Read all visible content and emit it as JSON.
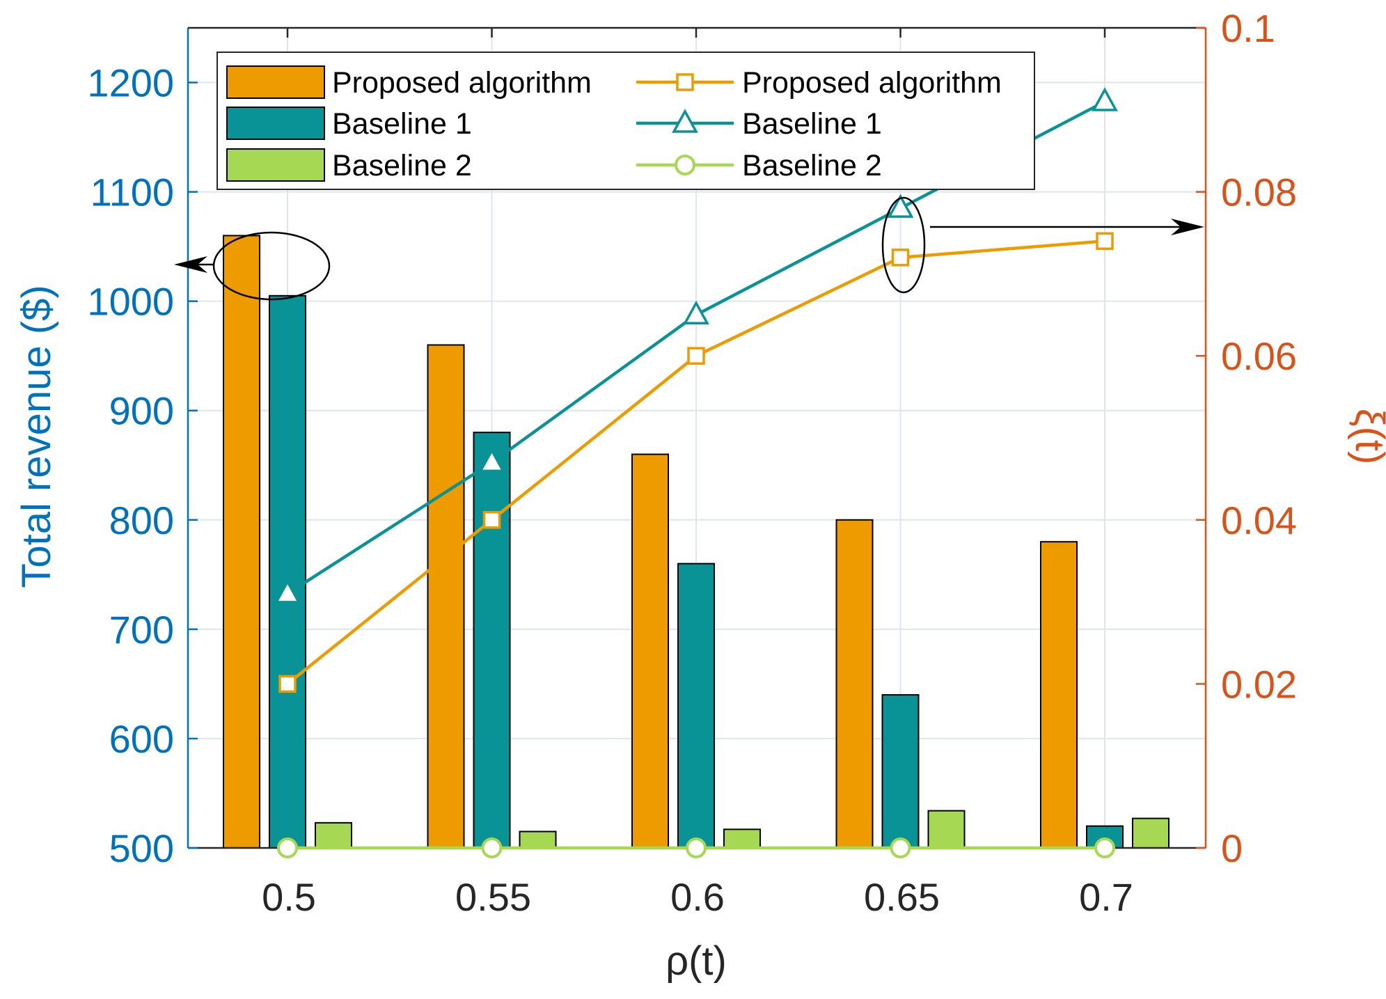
{
  "colors": {
    "proposed": "#ee9b00",
    "baseline1": "#0a9396",
    "baseline2": "#a6d854",
    "left_axis": "#0072bd",
    "right_axis": "#d95319",
    "grid": "#dfe5ea",
    "annotation": "#000000"
  },
  "chart_data": {
    "type": "bar",
    "secondary_type": "line",
    "title": "",
    "xlabel": "ρ(t)",
    "ylabel_left": "Total revenue ($)",
    "ylabel_right": "ξ(t)",
    "categories": [
      "0.5",
      "0.55",
      "0.6",
      "0.65",
      "0.7"
    ],
    "ylim_left": [
      500,
      1250
    ],
    "ylim_right": [
      0,
      0.1
    ],
    "yticks_left": [
      "500",
      "600",
      "700",
      "800",
      "900",
      "1000",
      "1100",
      "1200"
    ],
    "yticks_right": [
      "0",
      "0.02",
      "0.04",
      "0.06",
      "0.08",
      "0.1"
    ],
    "grid": true,
    "legend_position": "top-left",
    "bar_series": [
      {
        "name": "Proposed algorithm",
        "color_key": "proposed",
        "values": [
          1060,
          960,
          860,
          800,
          780
        ]
      },
      {
        "name": "Baseline 1",
        "color_key": "baseline1",
        "values": [
          1005,
          880,
          760,
          640,
          520
        ]
      },
      {
        "name": "Baseline 2",
        "color_key": "baseline2",
        "values": [
          523,
          515,
          517,
          534,
          527
        ]
      }
    ],
    "line_series": [
      {
        "name": "Proposed algorithm",
        "color_key": "proposed",
        "marker": "square",
        "values": [
          0.02,
          0.04,
          0.06,
          0.072,
          0.074
        ]
      },
      {
        "name": "Baseline 1",
        "color_key": "baseline1",
        "marker": "triangle",
        "values": [
          0.031,
          0.047,
          0.065,
          0.078,
          0.091
        ]
      },
      {
        "name": "Baseline 2",
        "color_key": "baseline2",
        "marker": "circle",
        "values": [
          0,
          0,
          0,
          0,
          0
        ]
      }
    ]
  }
}
